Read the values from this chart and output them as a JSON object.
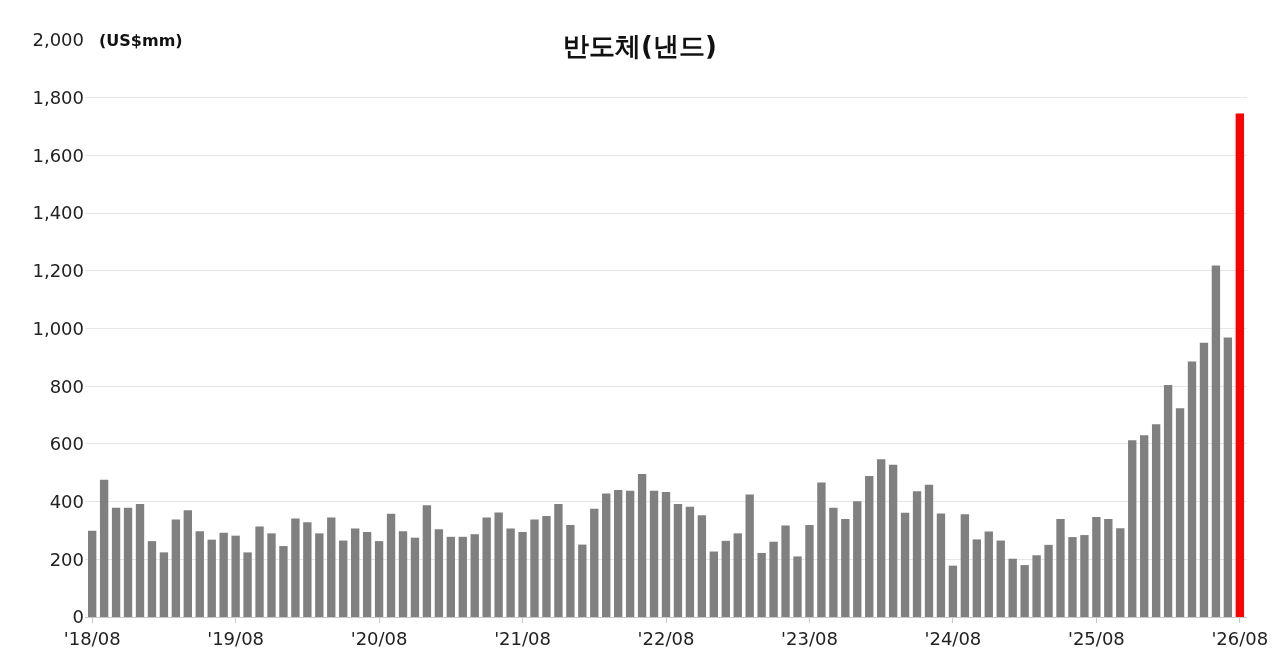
{
  "chart_data": {
    "type": "bar",
    "title": "반도체(낸드)",
    "ylabel": "(US$mm)",
    "categories": [
      "'18/08",
      null,
      null,
      null,
      null,
      null,
      null,
      null,
      null,
      null,
      null,
      null,
      "'19/08",
      null,
      null,
      null,
      null,
      null,
      null,
      null,
      null,
      null,
      null,
      null,
      "'20/08",
      null,
      null,
      null,
      null,
      null,
      null,
      null,
      null,
      null,
      null,
      null,
      "'21/08",
      null,
      null,
      null,
      null,
      null,
      null,
      null,
      null,
      null,
      null,
      null,
      "'22/08",
      null,
      null,
      null,
      null,
      null,
      null,
      null,
      null,
      null,
      null,
      null,
      "'23/08",
      null,
      null,
      null,
      null,
      null,
      null,
      null,
      null,
      null,
      null,
      null,
      "'24/08",
      null,
      null,
      null,
      null,
      null,
      null,
      null,
      null,
      null,
      null,
      null,
      "'25/08",
      null,
      null,
      null,
      null,
      null,
      null,
      null,
      null,
      null,
      null,
      null,
      "'26/08"
    ],
    "values": [
      299,
      476,
      379,
      379,
      392,
      263,
      224,
      338,
      370,
      297,
      268,
      292,
      282,
      224,
      314,
      290,
      246,
      341,
      328,
      290,
      345,
      265,
      307,
      295,
      263,
      358,
      297,
      275,
      387,
      304,
      278,
      278,
      287,
      345,
      362,
      307,
      295,
      338,
      350,
      392,
      319,
      251,
      375,
      428,
      440,
      438,
      496,
      438,
      433,
      392,
      382,
      353,
      227,
      264,
      290,
      425,
      222,
      261,
      317,
      210,
      319,
      466,
      379,
      340,
      401,
      489,
      547,
      528,
      361,
      436,
      458,
      359,
      178,
      356,
      269,
      296,
      265,
      202,
      180,
      214,
      250,
      340,
      277,
      284,
      347,
      340,
      308,
      613,
      630,
      668,
      804,
      724,
      886,
      951,
      1218,
      969,
      1745
    ],
    "colors": [
      "#808080",
      "#808080",
      "#808080",
      "#808080",
      "#808080",
      "#808080",
      "#808080",
      "#808080",
      "#808080",
      "#808080",
      "#808080",
      "#808080",
      "#808080",
      "#808080",
      "#808080",
      "#808080",
      "#808080",
      "#808080",
      "#808080",
      "#808080",
      "#808080",
      "#808080",
      "#808080",
      "#808080",
      "#808080",
      "#808080",
      "#808080",
      "#808080",
      "#808080",
      "#808080",
      "#808080",
      "#808080",
      "#808080",
      "#808080",
      "#808080",
      "#808080",
      "#808080",
      "#808080",
      "#808080",
      "#808080",
      "#808080",
      "#808080",
      "#808080",
      "#808080",
      "#808080",
      "#808080",
      "#808080",
      "#808080",
      "#808080",
      "#808080",
      "#808080",
      "#808080",
      "#808080",
      "#808080",
      "#808080",
      "#808080",
      "#808080",
      "#808080",
      "#808080",
      "#808080",
      "#808080",
      "#808080",
      "#808080",
      "#808080",
      "#808080",
      "#808080",
      "#808080",
      "#808080",
      "#808080",
      "#808080",
      "#808080",
      "#808080",
      "#808080",
      "#808080",
      "#808080",
      "#808080",
      "#808080",
      "#808080",
      "#808080",
      "#808080",
      "#808080",
      "#808080",
      "#808080",
      "#808080",
      "#808080",
      "#808080",
      "#808080",
      "#808080",
      "#808080",
      "#808080",
      "#808080",
      "#808080",
      "#808080",
      "#808080",
      "#808080",
      "#808080",
      "#ff0000"
    ],
    "ylim": [
      0,
      2000
    ],
    "yticks": [
      0,
      {
        "value": 200,
        "label": "200"
      },
      {
        "value": 400,
        "label": "400"
      },
      {
        "value": 600,
        "label": "600"
      },
      {
        "value": 800,
        "label": "800"
      },
      {
        "value": 1000,
        "label": "1,000"
      },
      {
        "value": 1200,
        "label": "1,200"
      },
      {
        "value": 1400,
        "label": "1,400"
      },
      {
        "value": 1600,
        "label": "1,600"
      },
      {
        "value": 1800,
        "label": "1,800"
      },
      {
        "value": 2000,
        "label": "2,000"
      }
    ],
    "grid": "y"
  }
}
